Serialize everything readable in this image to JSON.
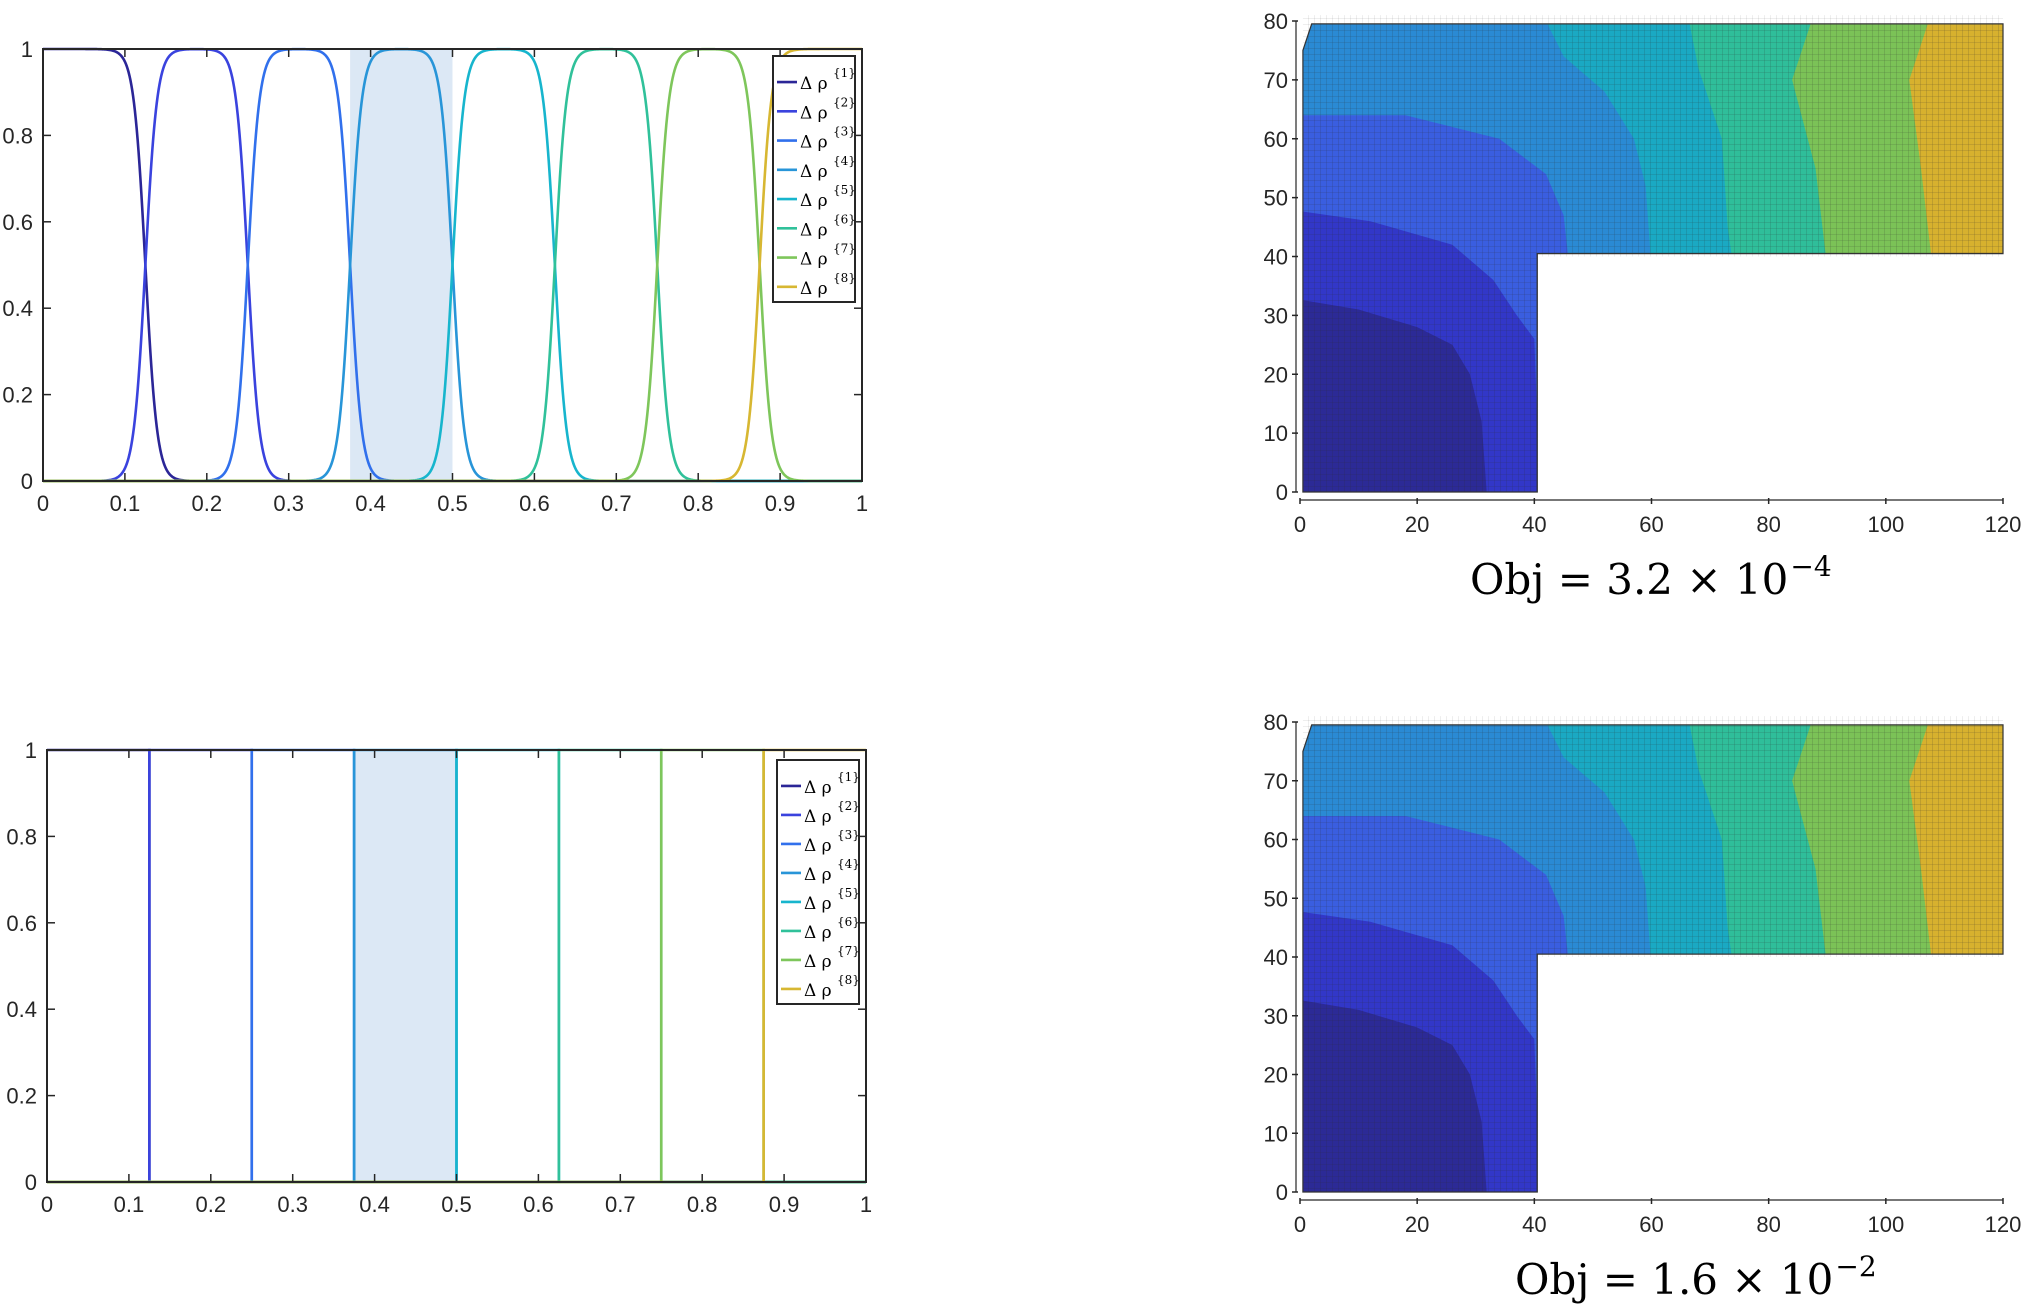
{
  "chart_data": [
    {
      "type": "line",
      "smooth": true,
      "x": {
        "lim": [
          0,
          1
        ],
        "ticks": [
          0,
          0.1,
          0.2,
          0.3,
          0.4,
          0.5,
          0.6,
          0.7,
          0.8,
          0.9,
          1
        ],
        "tick_labels": [
          "0",
          "0.1",
          "0.2",
          "0.3",
          "0.4",
          "0.5",
          "0.6",
          "0.7",
          "0.8",
          "0.9",
          "1"
        ]
      },
      "y": {
        "lim": [
          0,
          1
        ],
        "ticks": [
          0,
          0.2,
          0.4,
          0.6,
          0.8,
          1
        ],
        "tick_labels": [
          "0",
          "0.2",
          "0.4",
          "0.6",
          "0.8",
          "1"
        ]
      },
      "shaded_interval": [
        0.375,
        0.5
      ],
      "legend": {
        "placement": "top-right"
      },
      "series": [
        {
          "name": "Δ ρ",
          "superscript": "{1}",
          "color": "#2b2697",
          "interval": [
            0,
            0.125
          ]
        },
        {
          "name": "Δ ρ",
          "superscript": "{2}",
          "color": "#3a43de",
          "interval": [
            0.125,
            0.25
          ]
        },
        {
          "name": "Δ ρ",
          "superscript": "{3}",
          "color": "#3170ec",
          "interval": [
            0.25,
            0.375
          ]
        },
        {
          "name": "Δ ρ",
          "superscript": "{4}",
          "color": "#2895d8",
          "interval": [
            0.375,
            0.5
          ]
        },
        {
          "name": "Δ ρ",
          "superscript": "{5}",
          "color": "#17b5cd",
          "interval": [
            0.5,
            0.625
          ]
        },
        {
          "name": "Δ ρ",
          "superscript": "{6}",
          "color": "#30c19a",
          "interval": [
            0.625,
            0.75
          ]
        },
        {
          "name": "Δ ρ",
          "superscript": "{7}",
          "color": "#7ec65b",
          "interval": [
            0.75,
            0.875
          ]
        },
        {
          "name": "Δ ρ",
          "superscript": "{8}",
          "color": "#d7b732",
          "interval": [
            0.875,
            1
          ]
        }
      ]
    },
    {
      "type": "heatmap",
      "description_kind": "contour on mesh",
      "x": {
        "lim": [
          0,
          120
        ],
        "ticks": [
          0,
          20,
          40,
          60,
          80,
          100,
          120
        ]
      },
      "y": {
        "lim": [
          0,
          80
        ],
        "ticks": [
          0,
          10,
          20,
          30,
          40,
          50,
          60,
          70,
          80
        ]
      },
      "caption": {
        "base": "Obj = 3.2 × 10",
        "exponent": "−4"
      }
    },
    {
      "type": "line",
      "smooth": false,
      "x": {
        "lim": [
          0,
          1
        ],
        "ticks": [
          0,
          0.1,
          0.2,
          0.3,
          0.4,
          0.5,
          0.6,
          0.7,
          0.8,
          0.9,
          1
        ],
        "tick_labels": [
          "0",
          "0.1",
          "0.2",
          "0.3",
          "0.4",
          "0.5",
          "0.6",
          "0.7",
          "0.8",
          "0.9",
          "1"
        ]
      },
      "y": {
        "lim": [
          0,
          1
        ],
        "ticks": [
          0,
          0.2,
          0.4,
          0.6,
          0.8,
          1
        ],
        "tick_labels": [
          "0",
          "0.2",
          "0.4",
          "0.6",
          "0.8",
          "1"
        ]
      },
      "shaded_interval": [
        0.375,
        0.5
      ],
      "legend": {
        "placement": "top-right"
      },
      "series": [
        {
          "name": "Δ ρ",
          "superscript": "{1}",
          "color": "#2b2697",
          "interval": [
            0,
            0.125
          ]
        },
        {
          "name": "Δ ρ",
          "superscript": "{2}",
          "color": "#3a43de",
          "interval": [
            0.125,
            0.25
          ]
        },
        {
          "name": "Δ ρ",
          "superscript": "{3}",
          "color": "#3170ec",
          "interval": [
            0.25,
            0.375
          ]
        },
        {
          "name": "Δ ρ",
          "superscript": "{4}",
          "color": "#2895d8",
          "interval": [
            0.375,
            0.5
          ]
        },
        {
          "name": "Δ ρ",
          "superscript": "{5}",
          "color": "#17b5cd",
          "interval": [
            0.5,
            0.625
          ]
        },
        {
          "name": "Δ ρ",
          "superscript": "{6}",
          "color": "#30c19a",
          "interval": [
            0.625,
            0.75
          ]
        },
        {
          "name": "Δ ρ",
          "superscript": "{7}",
          "color": "#7ec65b",
          "interval": [
            0.75,
            0.875
          ]
        },
        {
          "name": "Δ ρ",
          "superscript": "{8}",
          "color": "#d7b732",
          "interval": [
            0.875,
            1
          ]
        }
      ]
    },
    {
      "type": "heatmap",
      "description_kind": "contour on mesh",
      "x": {
        "lim": [
          0,
          120
        ],
        "ticks": [
          0,
          20,
          40,
          60,
          80,
          100,
          120
        ]
      },
      "y": {
        "lim": [
          0,
          80
        ],
        "ticks": [
          0,
          10,
          20,
          30,
          40,
          50,
          60,
          70,
          80
        ]
      },
      "caption": {
        "base": "Obj = 1.6 × 10",
        "exponent": "−2"
      }
    }
  ]
}
